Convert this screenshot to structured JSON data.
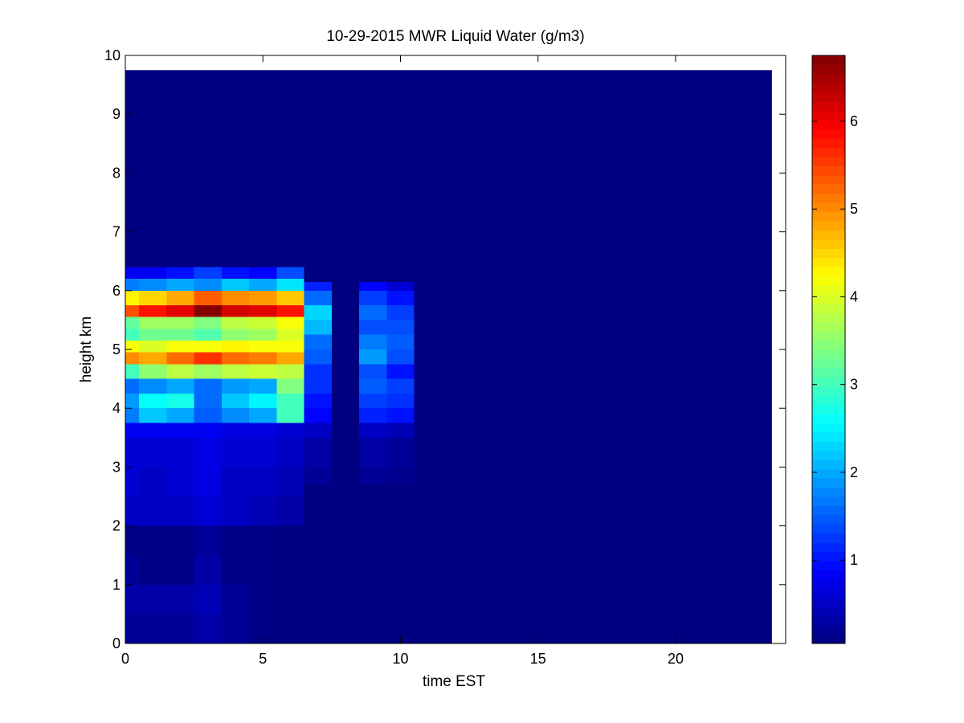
{
  "chart_data": {
    "type": "heatmap",
    "title": "10-29-2015 MWR Liquid Water (g/m3)",
    "xlabel": "time EST",
    "ylabel": "height km",
    "xlim": [
      0,
      24
    ],
    "ylim": [
      0,
      10
    ],
    "x_ticks": [
      "0",
      "5",
      "10",
      "15",
      "20"
    ],
    "y_ticks": [
      "0",
      "1",
      "2",
      "3",
      "4",
      "5",
      "6",
      "7",
      "8",
      "9",
      "10"
    ],
    "colorbar": {
      "colormap": "jet",
      "range": [
        0.05,
        6.75
      ],
      "ticks": [
        "1",
        "2",
        "3",
        "4",
        "5",
        "6"
      ]
    },
    "grid": false,
    "cell_width_hours": 1,
    "x_extent_hours": 23.5,
    "y_extent_km": 9.75,
    "background_value": 0.05,
    "columns": [
      {
        "hour": 0,
        "profile": [
          [
            0,
            0.2
          ],
          [
            0.5,
            0.3
          ],
          [
            1.0,
            0.2
          ],
          [
            1.5,
            0.1
          ],
          [
            2.0,
            0.5
          ],
          [
            2.5,
            0.6
          ],
          [
            3.0,
            0.6
          ],
          [
            3.5,
            0.8
          ],
          [
            3.75,
            1.7
          ],
          [
            4.0,
            1.9
          ],
          [
            4.25,
            1.6
          ],
          [
            4.5,
            3.0
          ],
          [
            4.75,
            5.0
          ],
          [
            4.95,
            4.2
          ],
          [
            5.15,
            3.0
          ],
          [
            5.35,
            3.2
          ],
          [
            5.55,
            5.4
          ],
          [
            5.75,
            4.3
          ],
          [
            6.0,
            1.7
          ],
          [
            6.2,
            0.8
          ],
          [
            6.4,
            0.05
          ]
        ]
      },
      {
        "hour": 1,
        "profile": [
          [
            0,
            0.2
          ],
          [
            0.5,
            0.3
          ],
          [
            1.0,
            0.1
          ],
          [
            1.5,
            0.1
          ],
          [
            2.0,
            0.5
          ],
          [
            2.5,
            0.5
          ],
          [
            3.0,
            0.6
          ],
          [
            3.5,
            0.8
          ],
          [
            3.75,
            2.2
          ],
          [
            4.0,
            2.6
          ],
          [
            4.25,
            1.8
          ],
          [
            4.5,
            3.5
          ],
          [
            4.75,
            4.8
          ],
          [
            4.95,
            4.0
          ],
          [
            5.15,
            3.3
          ],
          [
            5.35,
            3.6
          ],
          [
            5.55,
            5.8
          ],
          [
            5.75,
            4.5
          ],
          [
            6.0,
            1.8
          ],
          [
            6.2,
            0.8
          ],
          [
            6.4,
            0.05
          ]
        ]
      },
      {
        "hour": 2,
        "profile": [
          [
            0,
            0.2
          ],
          [
            0.5,
            0.3
          ],
          [
            1.0,
            0.1
          ],
          [
            1.5,
            0.1
          ],
          [
            2.0,
            0.5
          ],
          [
            2.5,
            0.6
          ],
          [
            3.0,
            0.6
          ],
          [
            3.5,
            0.8
          ],
          [
            3.75,
            2.0
          ],
          [
            4.0,
            2.7
          ],
          [
            4.25,
            2.0
          ],
          [
            4.5,
            3.8
          ],
          [
            4.75,
            5.2
          ],
          [
            4.95,
            4.2
          ],
          [
            5.15,
            3.3
          ],
          [
            5.35,
            3.6
          ],
          [
            5.55,
            6.1
          ],
          [
            5.75,
            4.8
          ],
          [
            6.0,
            2.0
          ],
          [
            6.2,
            1.0
          ],
          [
            6.4,
            0.05
          ]
        ]
      },
      {
        "hour": 3,
        "profile": [
          [
            0,
            0.3
          ],
          [
            0.5,
            0.4
          ],
          [
            1.0,
            0.3
          ],
          [
            1.5,
            0.2
          ],
          [
            2.0,
            0.6
          ],
          [
            2.5,
            0.7
          ],
          [
            3.0,
            0.7
          ],
          [
            3.5,
            0.8
          ],
          [
            3.75,
            1.5
          ],
          [
            4.0,
            1.6
          ],
          [
            4.25,
            1.6
          ],
          [
            4.5,
            3.6
          ],
          [
            4.75,
            5.6
          ],
          [
            4.95,
            4.2
          ],
          [
            5.15,
            3.1
          ],
          [
            5.35,
            3.4
          ],
          [
            5.55,
            6.7
          ],
          [
            5.75,
            5.3
          ],
          [
            6.0,
            1.8
          ],
          [
            6.2,
            1.3
          ],
          [
            6.4,
            0.05
          ]
        ]
      },
      {
        "hour": 4,
        "profile": [
          [
            0,
            0.2
          ],
          [
            0.5,
            0.2
          ],
          [
            1.0,
            0.1
          ],
          [
            1.5,
            0.1
          ],
          [
            2.0,
            0.5
          ],
          [
            2.5,
            0.5
          ],
          [
            3.0,
            0.6
          ],
          [
            3.5,
            0.7
          ],
          [
            3.75,
            1.8
          ],
          [
            4.0,
            2.2
          ],
          [
            4.25,
            1.9
          ],
          [
            4.5,
            3.8
          ],
          [
            4.75,
            5.2
          ],
          [
            4.95,
            4.3
          ],
          [
            5.15,
            3.5
          ],
          [
            5.35,
            3.8
          ],
          [
            5.55,
            6.2
          ],
          [
            5.75,
            5.0
          ],
          [
            6.0,
            2.2
          ],
          [
            6.2,
            1.0
          ],
          [
            6.4,
            0.05
          ]
        ]
      },
      {
        "hour": 5,
        "profile": [
          [
            0,
            0.1
          ],
          [
            0.5,
            0.1
          ],
          [
            1.0,
            0.1
          ],
          [
            1.5,
            0.1
          ],
          [
            2.0,
            0.4
          ],
          [
            2.5,
            0.5
          ],
          [
            3.0,
            0.6
          ],
          [
            3.5,
            0.7
          ],
          [
            3.75,
            2.0
          ],
          [
            4.0,
            2.5
          ],
          [
            4.25,
            2.0
          ],
          [
            4.5,
            3.9
          ],
          [
            4.75,
            5.1
          ],
          [
            4.95,
            4.2
          ],
          [
            5.15,
            3.6
          ],
          [
            5.35,
            3.9
          ],
          [
            5.55,
            6.1
          ],
          [
            5.75,
            4.9
          ],
          [
            6.0,
            2.0
          ],
          [
            6.2,
            0.9
          ],
          [
            6.4,
            0.05
          ]
        ]
      },
      {
        "hour": 6,
        "profile": [
          [
            0,
            0.05
          ],
          [
            2.0,
            0.3
          ],
          [
            2.5,
            0.4
          ],
          [
            3.0,
            0.5
          ],
          [
            3.5,
            0.6
          ],
          [
            3.75,
            3.0
          ],
          [
            4.0,
            3.0
          ],
          [
            4.25,
            3.4
          ],
          [
            4.5,
            3.8
          ],
          [
            4.75,
            4.8
          ],
          [
            4.95,
            4.2
          ],
          [
            5.15,
            4.0
          ],
          [
            5.35,
            4.2
          ],
          [
            5.55,
            5.8
          ],
          [
            5.75,
            4.6
          ],
          [
            6.0,
            2.4
          ],
          [
            6.2,
            1.4
          ],
          [
            6.4,
            0.05
          ]
        ]
      },
      {
        "hour": 7,
        "profile": [
          [
            0,
            0.05
          ],
          [
            2.7,
            0.2
          ],
          [
            3.0,
            0.3
          ],
          [
            3.5,
            0.5
          ],
          [
            3.75,
            0.9
          ],
          [
            4.0,
            1.0
          ],
          [
            4.25,
            1.2
          ],
          [
            4.5,
            1.2
          ],
          [
            4.75,
            1.5
          ],
          [
            5.0,
            1.6
          ],
          [
            5.25,
            2.1
          ],
          [
            5.5,
            2.3
          ],
          [
            5.75,
            1.6
          ],
          [
            6.0,
            1.1
          ],
          [
            6.15,
            0.05
          ]
        ]
      },
      {
        "hour": 8,
        "profile": [
          [
            0,
            0.05
          ]
        ]
      },
      {
        "hour": 9,
        "profile": [
          [
            0,
            0.05
          ],
          [
            2.7,
            0.2
          ],
          [
            3.0,
            0.3
          ],
          [
            3.5,
            0.5
          ],
          [
            3.75,
            1.1
          ],
          [
            4.0,
            1.3
          ],
          [
            4.25,
            1.5
          ],
          [
            4.5,
            1.4
          ],
          [
            4.75,
            1.9
          ],
          [
            5.0,
            1.7
          ],
          [
            5.25,
            1.4
          ],
          [
            5.5,
            1.6
          ],
          [
            5.75,
            1.3
          ],
          [
            6.0,
            0.9
          ],
          [
            6.15,
            0.05
          ]
        ]
      },
      {
        "hour": 10,
        "profile": [
          [
            0,
            0.05
          ],
          [
            2.7,
            0.15
          ],
          [
            3.0,
            0.2
          ],
          [
            3.5,
            0.4
          ],
          [
            3.75,
            1.0
          ],
          [
            4.0,
            1.2
          ],
          [
            4.25,
            1.3
          ],
          [
            4.5,
            1.0
          ],
          [
            4.75,
            1.4
          ],
          [
            5.0,
            1.5
          ],
          [
            5.25,
            1.4
          ],
          [
            5.5,
            1.3
          ],
          [
            5.75,
            1.0
          ],
          [
            6.0,
            0.6
          ],
          [
            6.15,
            0.05
          ]
        ]
      }
    ]
  }
}
